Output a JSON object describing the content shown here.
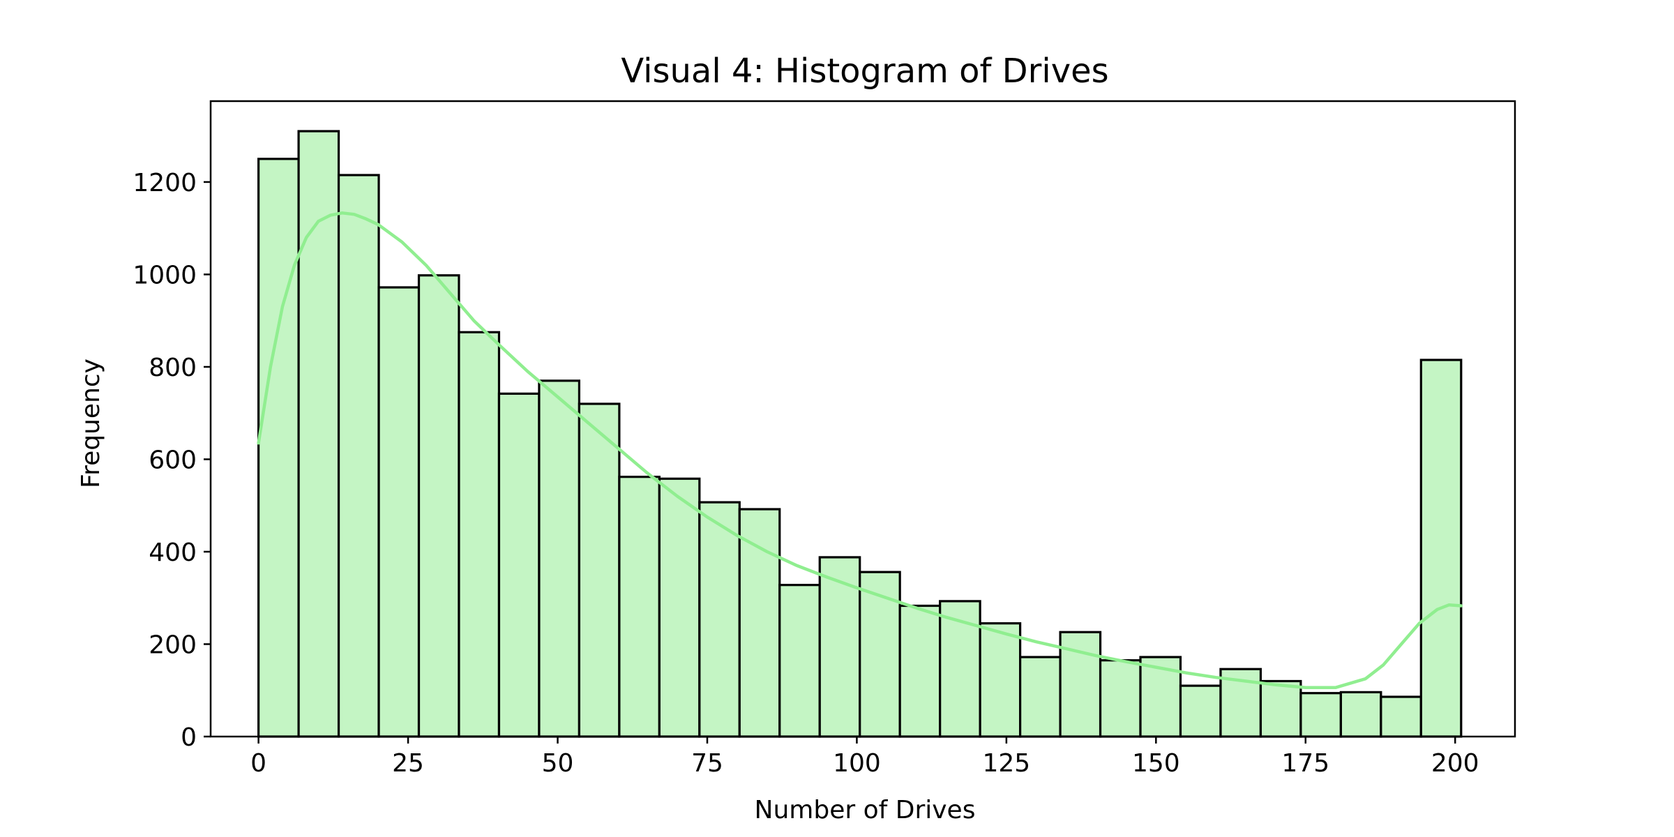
{
  "chart_data": {
    "type": "bar",
    "title": "Visual 4: Histogram of Drives",
    "xlabel": "Number of Drives",
    "ylabel": "Frequency",
    "xlim": [
      -8,
      210
    ],
    "ylim": [
      0,
      1375
    ],
    "xticks": [
      0,
      25,
      50,
      75,
      100,
      125,
      150,
      175,
      200
    ],
    "yticks": [
      0,
      200,
      400,
      600,
      800,
      1000,
      1200
    ],
    "bin_start": 0,
    "bin_width": 6.7,
    "values": [
      1250,
      1310,
      1215,
      972,
      998,
      875,
      742,
      770,
      720,
      562,
      558,
      507,
      492,
      328,
      388,
      356,
      283,
      293,
      245,
      172,
      226,
      165,
      172,
      110,
      146,
      120,
      94,
      96,
      86,
      815
    ],
    "kde": {
      "x": [
        0,
        2,
        4,
        6,
        8,
        10,
        12,
        14,
        16,
        18,
        20,
        24,
        28,
        32,
        36,
        40,
        45,
        50,
        55,
        60,
        65,
        70,
        75,
        80,
        85,
        90,
        95,
        100,
        105,
        110,
        115,
        120,
        125,
        130,
        135,
        140,
        145,
        150,
        155,
        160,
        165,
        170,
        175,
        180,
        185,
        188,
        191,
        194,
        197,
        199,
        201
      ],
      "y": [
        635,
        800,
        930,
        1020,
        1080,
        1115,
        1128,
        1133,
        1130,
        1120,
        1108,
        1070,
        1020,
        960,
        900,
        850,
        790,
        735,
        680,
        625,
        570,
        520,
        475,
        435,
        400,
        370,
        345,
        322,
        300,
        278,
        258,
        240,
        222,
        205,
        190,
        175,
        162,
        150,
        138,
        128,
        120,
        112,
        106,
        106,
        125,
        155,
        200,
        245,
        275,
        285,
        283
      ]
    },
    "colors": {
      "bar_fill": "#c4f5c4",
      "bar_edge": "#000000",
      "kde_line": "#90ee90"
    },
    "grid": false,
    "legend": "none"
  }
}
